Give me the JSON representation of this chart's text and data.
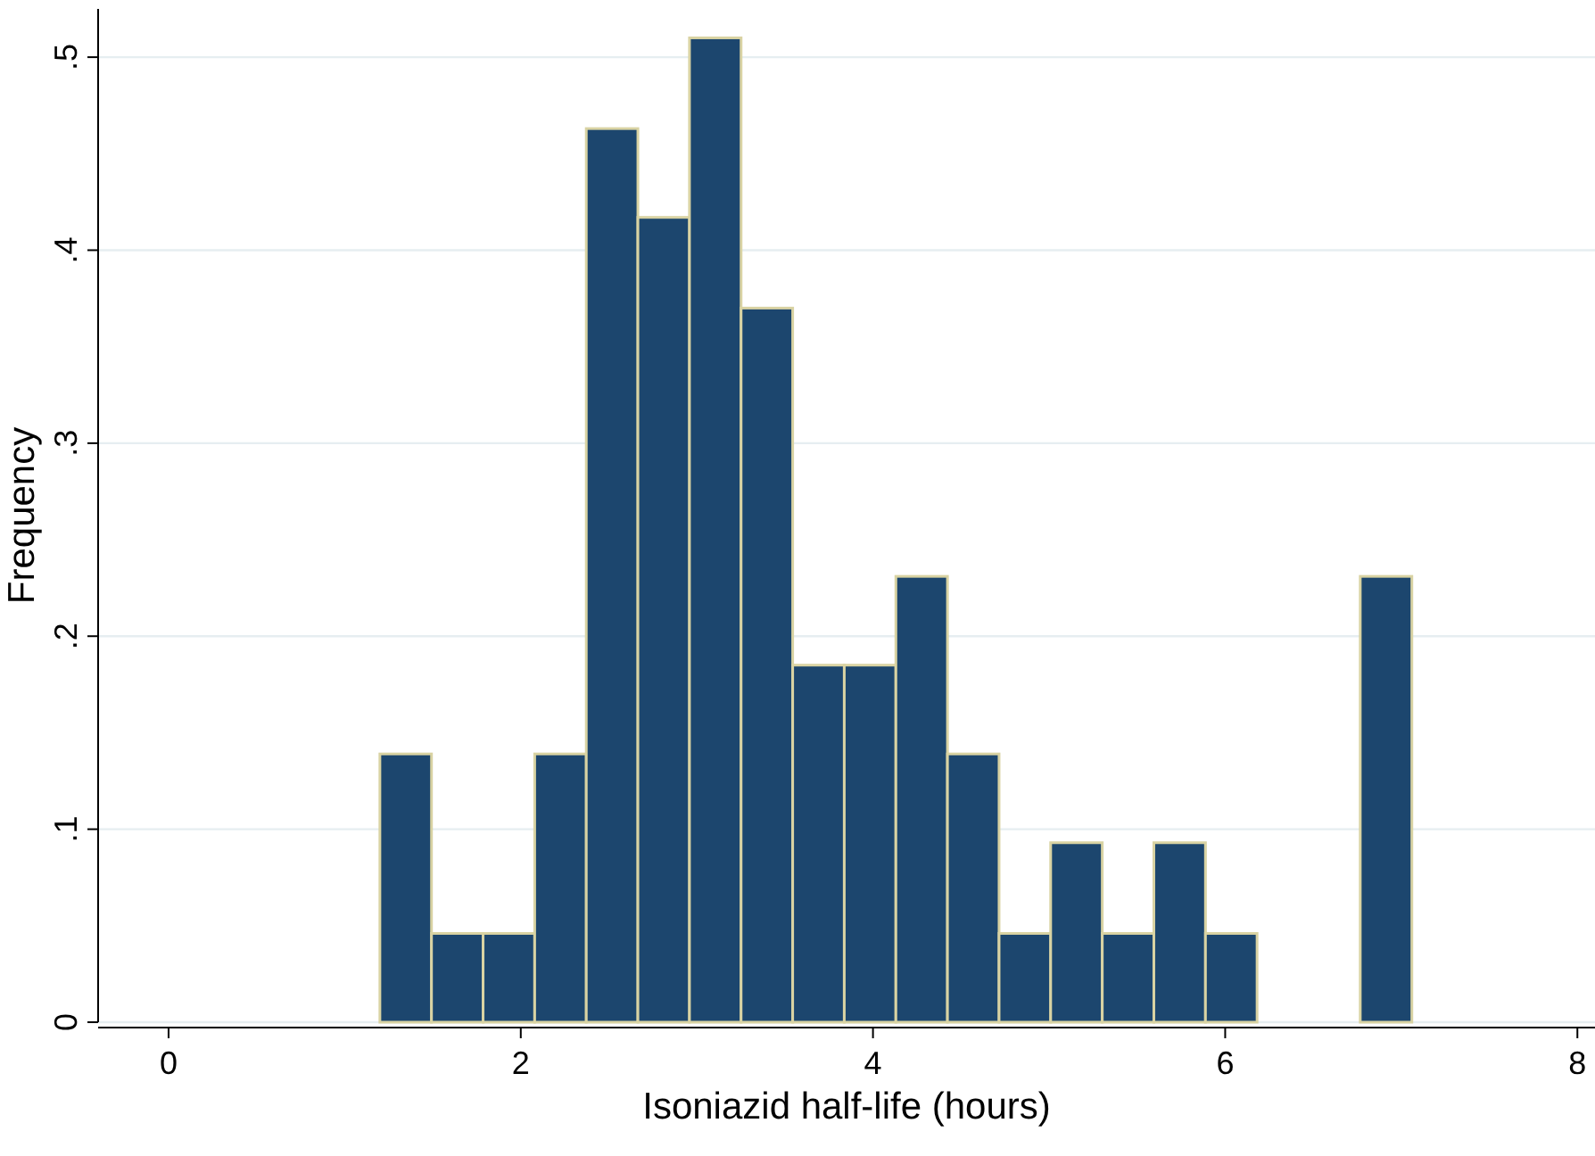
{
  "chart_data": {
    "type": "histogram",
    "xlabel": "Isoniazid half-life (hours)",
    "ylabel": "Frequency",
    "bins": [
      1.2,
      1.493,
      1.786,
      2.079,
      2.372,
      2.665,
      2.958,
      3.251,
      3.544,
      3.837,
      4.13,
      4.423,
      4.716,
      5.009,
      5.302,
      5.595,
      5.888,
      6.181,
      6.474,
      6.767,
      7.06
    ],
    "values": [
      0.139,
      0.046,
      0.046,
      0.139,
      0.463,
      0.417,
      0.51,
      0.37,
      0.185,
      0.185,
      0.231,
      0.139,
      0.046,
      0.093,
      0.046,
      0.093,
      0.046,
      0,
      0,
      0.231
    ],
    "color": "#1c466e",
    "xlim": [
      -0.4,
      8.1
    ],
    "xticks": [
      0,
      2,
      4,
      6,
      8
    ],
    "ylim": [
      0,
      0.525
    ],
    "yticks": [
      0,
      {
        "value": 0.1,
        "label": ".1"
      },
      {
        "value": 0.2,
        "label": ".2"
      },
      {
        "value": 0.3,
        "label": ".3"
      },
      {
        "value": 0.4,
        "label": ".4"
      },
      {
        "value": 0.5,
        "label": ".5"
      }
    ],
    "grid": "y"
  }
}
